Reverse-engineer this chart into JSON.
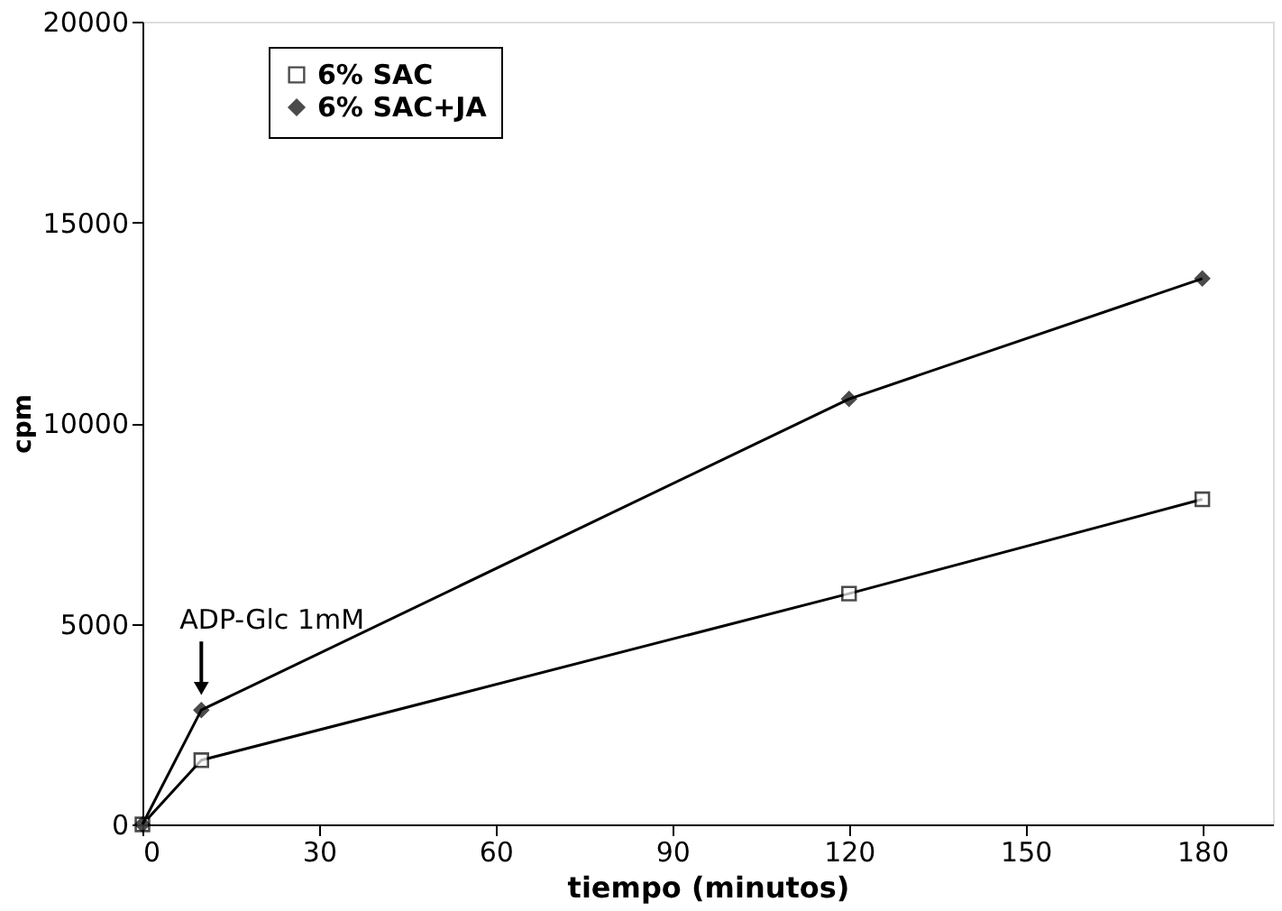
{
  "chart_data": {
    "type": "line",
    "xlabel": "tiempo (minutos)",
    "ylabel": "cpm",
    "xlim": [
      0,
      192
    ],
    "xticks": [
      0,
      30,
      60,
      90,
      120,
      150,
      180
    ],
    "ylim": [
      0,
      20000
    ],
    "yticks": [
      0,
      5000,
      10000,
      15000,
      20000
    ],
    "grid": false,
    "legend": "top left",
    "line_style": "solid",
    "series": [
      {
        "name": "6% SAC",
        "color": "#000000",
        "marker": "square",
        "x": [
          0,
          10,
          120,
          180
        ],
        "values": [
          0,
          1600,
          5750,
          8100
        ]
      },
      {
        "name": "6% SAC+JA",
        "color": "#000000",
        "marker": "diamond",
        "x": [
          0,
          10,
          120,
          180
        ],
        "values": [
          0,
          2850,
          10600,
          13600
        ]
      }
    ],
    "annotations": [
      {
        "text": "ADP-Glc 1mM",
        "x": 10,
        "y": 2850
      }
    ]
  }
}
